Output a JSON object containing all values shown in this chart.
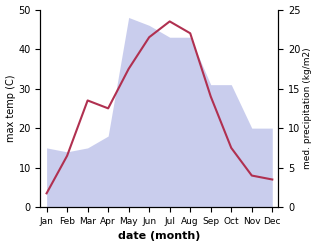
{
  "months": [
    "Jan",
    "Feb",
    "Mar",
    "Apr",
    "May",
    "Jun",
    "Jul",
    "Aug",
    "Sep",
    "Oct",
    "Nov",
    "Dec"
  ],
  "x": [
    0,
    1,
    2,
    3,
    4,
    5,
    6,
    7,
    8,
    9,
    10,
    11
  ],
  "temperature": [
    3.5,
    13,
    27,
    25,
    35,
    43,
    47,
    44,
    28,
    15,
    8,
    7
  ],
  "precipitation_left": [
    15,
    14,
    15,
    18,
    48,
    46,
    43,
    43,
    31,
    31,
    20,
    20
  ],
  "temp_color": "#b03050",
  "precip_fill_color": "#b8bde8",
  "precip_fill_alpha": 0.75,
  "xlabel": "date (month)",
  "ylabel_left": "max temp (C)",
  "ylabel_right": "med. precipitation (kg/m2)",
  "ylim_left": [
    0,
    50
  ],
  "ylim_right": [
    0,
    25
  ],
  "figsize": [
    3.18,
    2.47
  ],
  "dpi": 100
}
